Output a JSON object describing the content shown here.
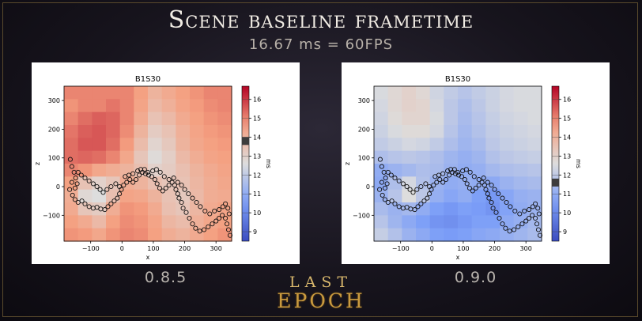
{
  "header": {
    "title": "Scene baseline frametime",
    "subtitle": "16.67 ms = 60FPS"
  },
  "footer": {
    "logo_top": "LAST",
    "logo_bottom": "EPOCH"
  },
  "chart_data": [
    {
      "type": "heatmap",
      "version_label": "0.8.5",
      "title": "B1S30",
      "xlabel": "x",
      "ylabel": "z",
      "colorbar_label": "ms",
      "xlim": [
        -185,
        350
      ],
      "ylim": [
        -190,
        350
      ],
      "x_ticks": [
        -100,
        0,
        100,
        200,
        300
      ],
      "y_ticks": [
        -100,
        0,
        100,
        200,
        300
      ],
      "colorbar_range": [
        8.5,
        16.7
      ],
      "colorbar_ticks": [
        9,
        10,
        11,
        12,
        13,
        14,
        15,
        16
      ],
      "colorbar_marker_ms": 13.8,
      "colormap": "coolwarm",
      "grid_cols": 12,
      "grid_rows": 12,
      "cells_ms": [
        [
          15.0,
          15.0,
          15.0,
          15.0,
          15.0,
          14.6,
          14.0,
          14.3,
          14.6,
          14.8,
          15.0,
          15.0
        ],
        [
          14.8,
          15.0,
          15.0,
          15.2,
          15.0,
          14.5,
          13.8,
          14.1,
          14.5,
          14.7,
          14.9,
          15.0
        ],
        [
          15.0,
          15.3,
          15.5,
          15.4,
          15.0,
          14.3,
          13.5,
          13.8,
          14.3,
          14.6,
          14.8,
          14.9
        ],
        [
          15.2,
          15.5,
          15.6,
          15.4,
          14.9,
          14.0,
          13.2,
          13.5,
          14.1,
          14.5,
          14.7,
          14.8
        ],
        [
          15.3,
          15.6,
          15.6,
          15.3,
          14.7,
          13.7,
          12.9,
          13.3,
          14.0,
          14.4,
          14.6,
          14.7
        ],
        [
          15.3,
          15.4,
          15.3,
          15.0,
          14.4,
          13.4,
          12.7,
          13.1,
          13.8,
          14.2,
          14.5,
          14.6
        ],
        [
          15.0,
          14.8,
          14.4,
          14.2,
          14.0,
          13.6,
          13.0,
          13.2,
          13.6,
          14.0,
          14.3,
          14.5
        ],
        [
          14.6,
          13.5,
          13.0,
          13.4,
          14.2,
          14.0,
          13.6,
          13.4,
          13.5,
          13.9,
          14.2,
          14.4
        ],
        [
          14.2,
          12.8,
          12.6,
          13.6,
          14.5,
          14.4,
          14.0,
          13.5,
          13.3,
          13.8,
          14.2,
          14.3
        ],
        [
          14.3,
          13.4,
          13.2,
          14.2,
          14.8,
          14.7,
          14.3,
          13.6,
          13.4,
          13.9,
          14.3,
          14.5
        ],
        [
          14.6,
          14.3,
          13.8,
          14.6,
          14.9,
          14.8,
          14.5,
          13.9,
          13.7,
          14.1,
          14.4,
          14.6
        ],
        [
          14.8,
          14.7,
          14.4,
          14.8,
          15.0,
          14.9,
          14.6,
          14.2,
          14.0,
          14.3,
          14.6,
          14.8
        ]
      ]
    },
    {
      "type": "heatmap",
      "version_label": "0.9.0",
      "title": "B1S30",
      "xlabel": "x",
      "ylabel": "z",
      "colorbar_label": "ms",
      "xlim": [
        -185,
        350
      ],
      "ylim": [
        -190,
        350
      ],
      "x_ticks": [
        -100,
        0,
        100,
        200,
        300
      ],
      "y_ticks": [
        -100,
        0,
        100,
        200,
        300
      ],
      "colorbar_range": [
        8.5,
        16.7
      ],
      "colorbar_ticks": [
        9,
        10,
        11,
        12,
        13,
        14,
        15,
        16
      ],
      "colorbar_marker_ms": 11.6,
      "colormap": "coolwarm",
      "grid_cols": 12,
      "grid_rows": 12,
      "cells_ms": [
        [
          12.5,
          12.8,
          13.0,
          12.8,
          12.3,
          12.0,
          11.8,
          12.0,
          12.2,
          12.4,
          12.5,
          12.5
        ],
        [
          12.4,
          12.8,
          13.0,
          12.9,
          12.4,
          11.9,
          11.6,
          11.9,
          12.2,
          12.4,
          12.5,
          12.5
        ],
        [
          12.3,
          12.7,
          12.9,
          12.9,
          12.5,
          11.9,
          11.5,
          11.8,
          12.1,
          12.3,
          12.4,
          12.5
        ],
        [
          12.2,
          12.5,
          12.7,
          12.7,
          12.4,
          11.8,
          11.4,
          11.7,
          12.0,
          12.2,
          12.3,
          12.4
        ],
        [
          12.0,
          12.2,
          12.4,
          12.3,
          12.0,
          11.6,
          11.3,
          11.5,
          11.9,
          12.1,
          12.2,
          12.3
        ],
        [
          11.6,
          11.8,
          11.9,
          11.8,
          11.6,
          11.3,
          11.1,
          11.3,
          11.7,
          11.9,
          12.0,
          12.1
        ],
        [
          11.0,
          11.2,
          11.4,
          11.6,
          11.5,
          11.2,
          11.0,
          11.1,
          11.4,
          11.6,
          11.7,
          11.8
        ],
        [
          10.9,
          11.6,
          12.4,
          11.7,
          11.2,
          11.0,
          11.1,
          11.0,
          10.9,
          11.2,
          11.4,
          11.5
        ],
        [
          11.2,
          11.8,
          12.6,
          11.9,
          11.1,
          10.8,
          11.0,
          10.6,
          10.4,
          10.8,
          11.1,
          11.2
        ],
        [
          11.5,
          11.2,
          11.4,
          11.0,
          10.6,
          10.4,
          10.6,
          10.5,
          10.3,
          10.7,
          11.0,
          11.2
        ],
        [
          11.8,
          11.3,
          10.9,
          10.6,
          10.3,
          10.2,
          10.4,
          10.6,
          10.6,
          10.9,
          11.1,
          11.4
        ],
        [
          12.1,
          11.7,
          11.2,
          10.9,
          10.6,
          10.5,
          10.6,
          10.8,
          10.9,
          11.1,
          11.3,
          11.5
        ]
      ]
    }
  ],
  "path_points": [
    [
      -165,
      95
    ],
    [
      -160,
      70
    ],
    [
      -153,
      50
    ],
    [
      -148,
      30
    ],
    [
      -143,
      10
    ],
    [
      -150,
      -5
    ],
    [
      -160,
      15
    ],
    [
      -167,
      -10
    ],
    [
      -158,
      -30
    ],
    [
      -150,
      -45
    ],
    [
      -140,
      -55
    ],
    [
      -128,
      -50
    ],
    [
      -118,
      -60
    ],
    [
      -105,
      -70
    ],
    [
      -92,
      -75
    ],
    [
      -80,
      -72
    ],
    [
      -68,
      -78
    ],
    [
      -55,
      -80
    ],
    [
      -45,
      -70
    ],
    [
      -35,
      -60
    ],
    [
      -25,
      -50
    ],
    [
      -15,
      -40
    ],
    [
      -8,
      -25
    ],
    [
      -2,
      -10
    ],
    [
      5,
      5
    ],
    [
      15,
      15
    ],
    [
      25,
      25
    ],
    [
      35,
      15
    ],
    [
      45,
      25
    ],
    [
      55,
      40
    ],
    [
      65,
      50
    ],
    [
      75,
      45
    ],
    [
      85,
      40
    ],
    [
      95,
      35
    ],
    [
      105,
      25
    ],
    [
      112,
      10
    ],
    [
      120,
      -5
    ],
    [
      130,
      -15
    ],
    [
      140,
      -5
    ],
    [
      150,
      5
    ],
    [
      160,
      15
    ],
    [
      168,
      5
    ],
    [
      172,
      -10
    ],
    [
      178,
      -25
    ],
    [
      182,
      -40
    ],
    [
      190,
      -55
    ],
    [
      195,
      -75
    ],
    [
      205,
      -90
    ],
    [
      215,
      -110
    ],
    [
      225,
      -130
    ],
    [
      235,
      -145
    ],
    [
      248,
      -155
    ],
    [
      262,
      -150
    ],
    [
      275,
      -140
    ],
    [
      288,
      -130
    ],
    [
      300,
      -120
    ],
    [
      310,
      -110
    ],
    [
      320,
      -100
    ],
    [
      330,
      -110
    ],
    [
      335,
      -130
    ],
    [
      340,
      -150
    ],
    [
      345,
      -170
    ]
  ],
  "path_branch_points": [
    [
      -140,
      50
    ],
    [
      -130,
      40
    ],
    [
      -118,
      30
    ],
    [
      -105,
      20
    ],
    [
      -92,
      10
    ],
    [
      -80,
      0
    ],
    [
      -70,
      -10
    ],
    [
      -60,
      -20
    ],
    [
      -48,
      -10
    ],
    [
      -35,
      0
    ],
    [
      -20,
      10
    ],
    [
      -8,
      0
    ],
    [
      10,
      35
    ],
    [
      22,
      40
    ],
    [
      35,
      45
    ],
    [
      50,
      55
    ],
    [
      60,
      60
    ],
    [
      72,
      60
    ],
    [
      82,
      50
    ],
    [
      98,
      55
    ],
    [
      110,
      60
    ],
    [
      122,
      50
    ],
    [
      135,
      35
    ],
    [
      150,
      25
    ],
    [
      165,
      30
    ],
    [
      178,
      15
    ],
    [
      190,
      5
    ],
    [
      200,
      -10
    ],
    [
      212,
      -25
    ],
    [
      225,
      -40
    ],
    [
      238,
      -55
    ],
    [
      250,
      -70
    ],
    [
      265,
      -85
    ],
    [
      280,
      -95
    ],
    [
      295,
      -85
    ],
    [
      310,
      -80
    ],
    [
      322,
      -70
    ],
    [
      330,
      -60
    ],
    [
      338,
      -75
    ],
    [
      342,
      -95
    ]
  ]
}
